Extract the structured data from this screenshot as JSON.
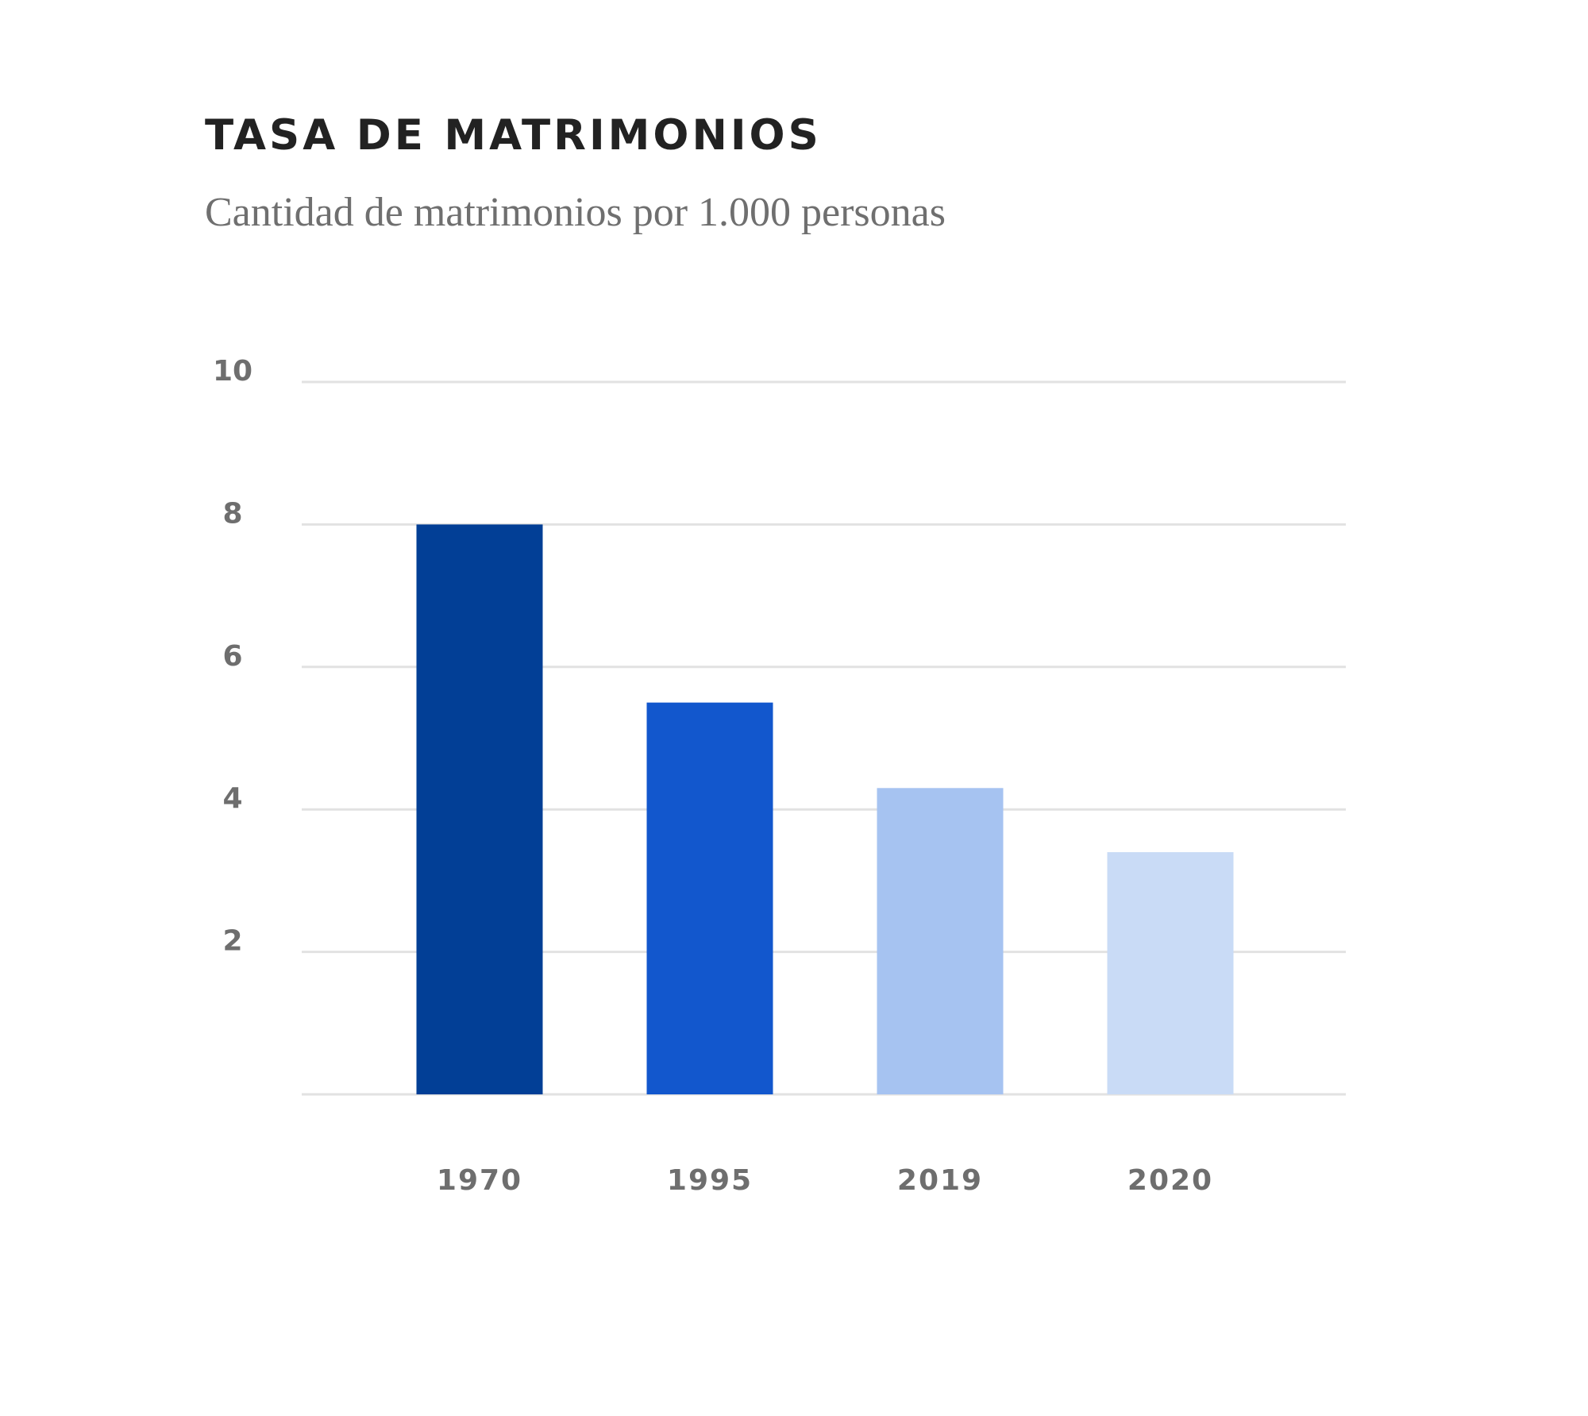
{
  "title": "TASA DE MATRIMONIOS",
  "subtitle": "Cantidad de matrimonios por 1.000 personas",
  "chart_data": {
    "type": "bar",
    "title": "TASA DE MATRIMONIOS",
    "subtitle": "Cantidad de matrimonios por 1.000 personas",
    "xlabel": "",
    "ylabel": "",
    "categories": [
      "1970",
      "1995",
      "2019",
      "2020"
    ],
    "values": [
      8.0,
      5.5,
      4.3,
      3.4
    ],
    "colors": [
      "#023f96",
      "#1257cd",
      "#a6c3f1",
      "#c9dbf6"
    ],
    "ylim": [
      0,
      10
    ],
    "yticks": [
      2,
      4,
      6,
      8,
      10
    ],
    "grid": true,
    "gridline_color": "#e2e2e2"
  }
}
